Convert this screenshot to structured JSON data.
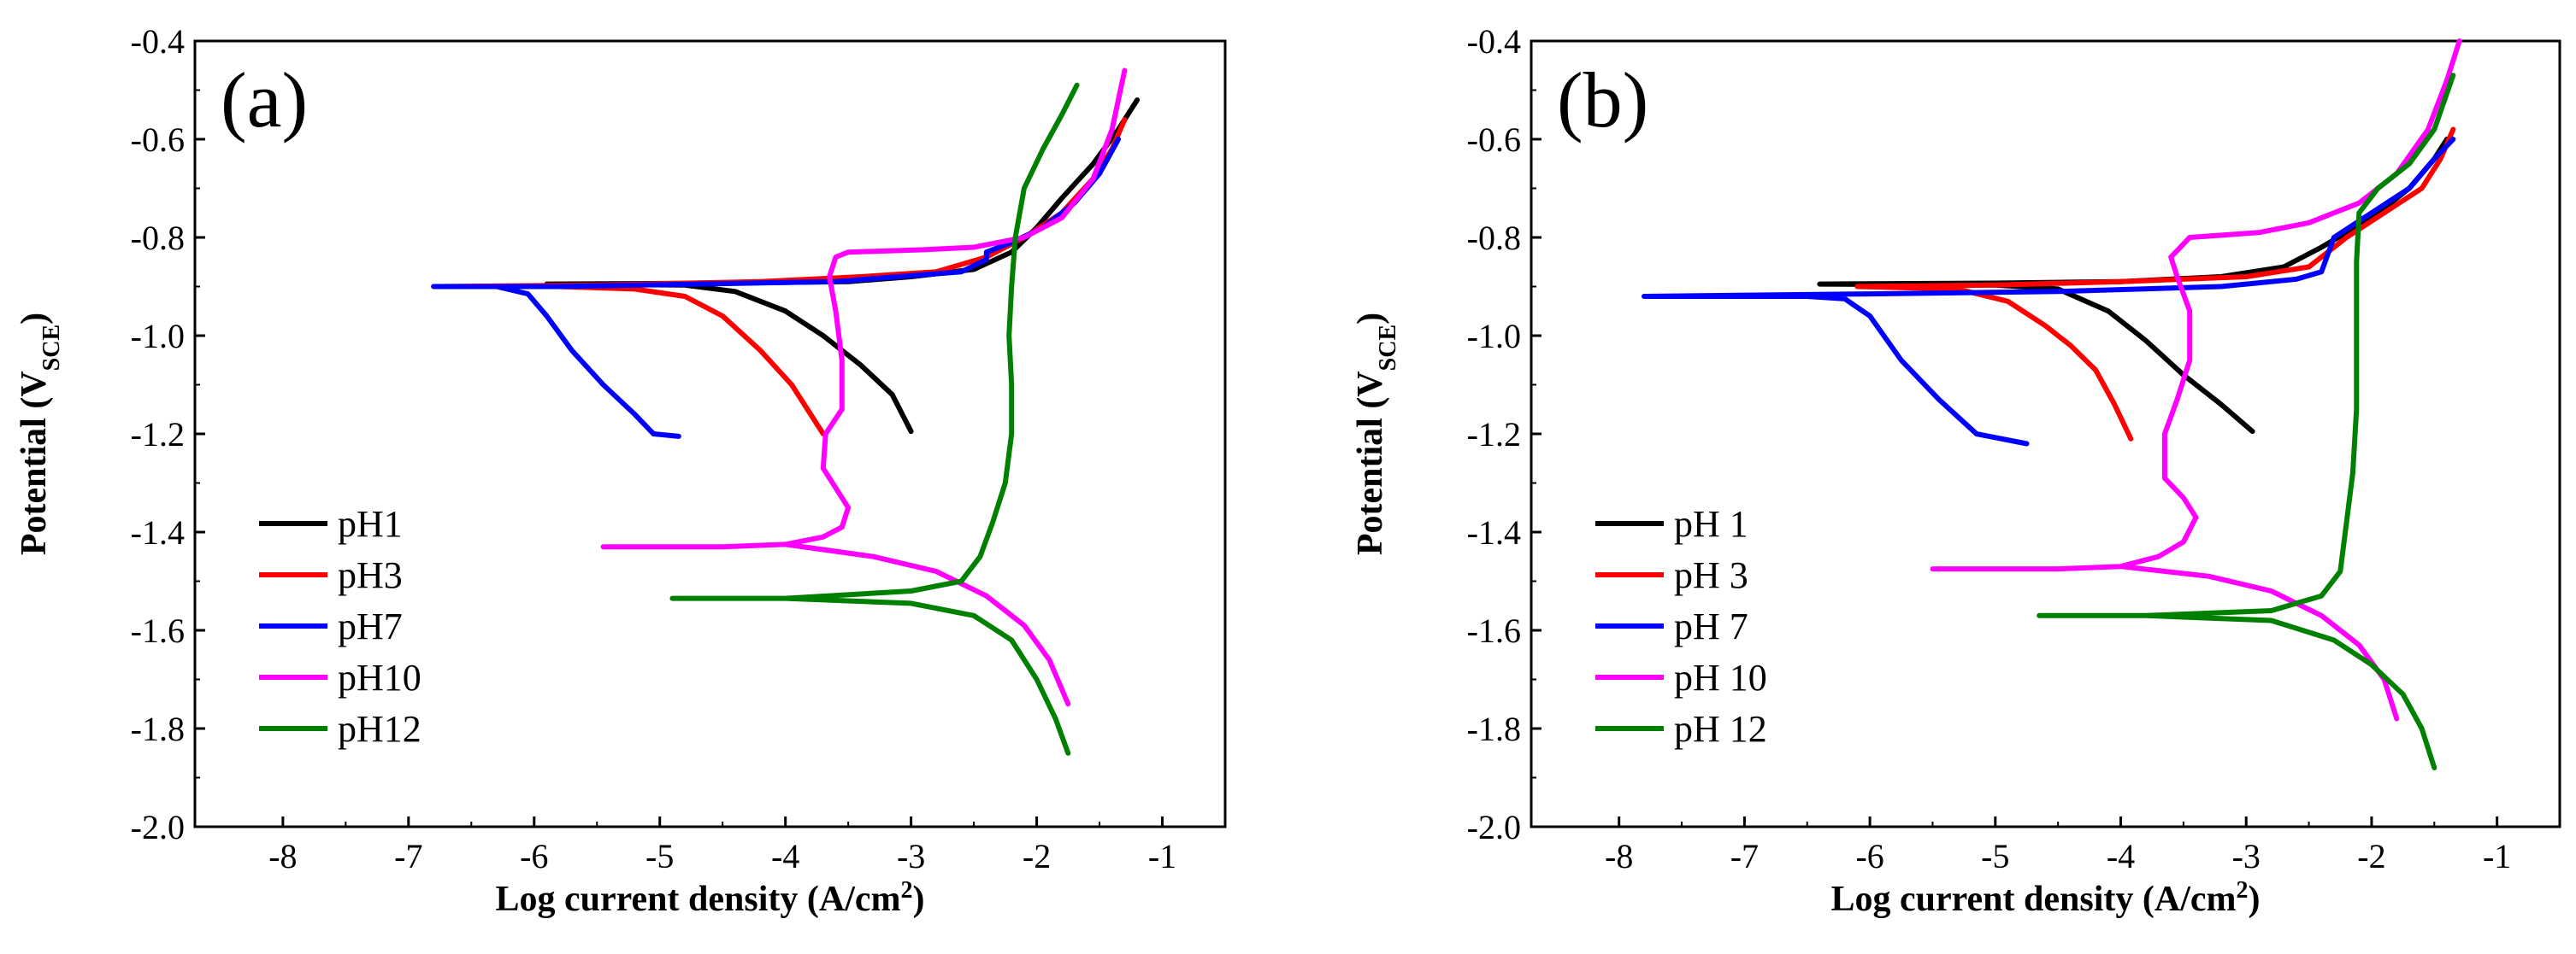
{
  "chart_data": [
    {
      "panel_label": "(a)",
      "type": "line",
      "xlabel": "Log current density (A/cm",
      "xlabel_sup": "2",
      "xlabel_end": ")",
      "ylabel": "Potential (V",
      "ylabel_sub": "SCE",
      "ylabel_end": ")",
      "xlim": [
        -8.7,
        -0.5
      ],
      "ylim": [
        -2.0,
        -0.4
      ],
      "xticks": [
        -8,
        -7,
        -6,
        -5,
        -4,
        -3,
        -2,
        -1
      ],
      "yticks": [
        -2.0,
        -1.8,
        -1.6,
        -1.4,
        -1.2,
        -1.0,
        -0.8,
        -0.6,
        -0.4
      ],
      "legend_position": "bottom-left",
      "series": [
        {
          "name": "pH1",
          "color": "#000000",
          "points": [
            [
              -5.9,
              -0.895
            ],
            [
              -4.8,
              -0.897
            ],
            [
              -4.4,
              -0.91
            ],
            [
              -4.0,
              -0.95
            ],
            [
              -3.7,
              -1.0
            ],
            [
              -3.4,
              -1.06
            ],
            [
              -3.15,
              -1.12
            ],
            [
              -3.0,
              -1.195
            ],
            null,
            [
              -5.9,
              -0.895
            ],
            [
              -4.5,
              -0.893
            ],
            [
              -3.5,
              -0.89
            ],
            [
              -3.0,
              -0.88
            ],
            [
              -2.5,
              -0.865
            ],
            [
              -2.2,
              -0.83
            ],
            [
              -2.0,
              -0.78
            ],
            [
              -1.8,
              -0.72
            ],
            [
              -1.55,
              -0.65
            ],
            [
              -1.35,
              -0.58
            ],
            [
              -1.2,
              -0.52
            ]
          ]
        },
        {
          "name": "pH3",
          "color": "#ff0000",
          "points": [
            [
              -6.8,
              -0.9
            ],
            [
              -5.8,
              -0.9
            ],
            [
              -5.2,
              -0.905
            ],
            [
              -4.8,
              -0.92
            ],
            [
              -4.5,
              -0.96
            ],
            [
              -4.2,
              -1.03
            ],
            [
              -3.95,
              -1.1
            ],
            [
              -3.8,
              -1.16
            ],
            [
              -3.7,
              -1.2
            ],
            null,
            [
              -6.8,
              -0.9
            ],
            [
              -5.5,
              -0.897
            ],
            [
              -4.2,
              -0.89
            ],
            [
              -3.4,
              -0.88
            ],
            [
              -2.8,
              -0.87
            ],
            [
              -2.4,
              -0.84
            ],
            [
              -2.1,
              -0.8
            ],
            [
              -1.8,
              -0.75
            ],
            [
              -1.55,
              -0.68
            ],
            [
              -1.4,
              -0.62
            ],
            [
              -1.3,
              -0.56
            ]
          ]
        },
        {
          "name": "pH7",
          "color": "#0000ff",
          "points": [
            [
              -6.8,
              -0.9
            ],
            [
              -6.3,
              -0.9
            ],
            [
              -6.05,
              -0.915
            ],
            [
              -5.9,
              -0.96
            ],
            [
              -5.7,
              -1.03
            ],
            [
              -5.45,
              -1.1
            ],
            [
              -5.2,
              -1.16
            ],
            [
              -5.05,
              -1.2
            ],
            [
              -4.85,
              -1.205
            ],
            null,
            [
              -6.8,
              -0.9
            ],
            [
              -5.8,
              -0.9
            ],
            [
              -4.7,
              -0.895
            ],
            [
              -3.6,
              -0.89
            ],
            [
              -2.6,
              -0.87
            ],
            [
              -2.4,
              -0.845
            ],
            [
              -2.4,
              -0.83
            ],
            [
              -2.2,
              -0.81
            ],
            [
              -1.95,
              -0.78
            ],
            [
              -1.7,
              -0.73
            ],
            [
              -1.5,
              -0.67
            ],
            [
              -1.35,
              -0.6
            ]
          ]
        },
        {
          "name": "pH10",
          "color": "#ff00ff",
          "points": [
            [
              -5.45,
              -1.43
            ],
            [
              -4.5,
              -1.43
            ],
            [
              -4.0,
              -1.425
            ],
            [
              -3.7,
              -1.41
            ],
            [
              -3.55,
              -1.39
            ],
            [
              -3.5,
              -1.35
            ],
            [
              -3.6,
              -1.31
            ],
            [
              -3.7,
              -1.27
            ],
            [
              -3.68,
              -1.2
            ],
            [
              -3.55,
              -1.15
            ],
            [
              -3.55,
              -1.05
            ],
            [
              -3.6,
              -0.95
            ],
            [
              -3.65,
              -0.88
            ],
            [
              -3.6,
              -0.84
            ],
            [
              -3.5,
              -0.83
            ],
            [
              -2.9,
              -0.825
            ],
            [
              -2.5,
              -0.82
            ],
            [
              -2.1,
              -0.8
            ],
            [
              -1.8,
              -0.76
            ],
            [
              -1.55,
              -0.68
            ],
            [
              -1.4,
              -0.58
            ],
            [
              -1.3,
              -0.46
            ],
            null,
            [
              -4.0,
              -1.425
            ],
            [
              -3.3,
              -1.45
            ],
            [
              -2.8,
              -1.48
            ],
            [
              -2.4,
              -1.53
            ],
            [
              -2.1,
              -1.59
            ],
            [
              -1.9,
              -1.66
            ],
            [
              -1.75,
              -1.75
            ]
          ]
        },
        {
          "name": "pH12",
          "color": "#008000",
          "points": [
            [
              -4.9,
              -1.535
            ],
            [
              -4.0,
              -1.535
            ],
            [
              -3.0,
              -1.52
            ],
            [
              -2.6,
              -1.5
            ],
            [
              -2.45,
              -1.45
            ],
            [
              -2.35,
              -1.38
            ],
            [
              -2.25,
              -1.3
            ],
            [
              -2.2,
              -1.2
            ],
            [
              -2.2,
              -1.1
            ],
            [
              -2.22,
              -1.0
            ],
            [
              -2.2,
              -0.9
            ],
            [
              -2.17,
              -0.8
            ],
            [
              -2.1,
              -0.7
            ],
            [
              -1.95,
              -0.62
            ],
            [
              -1.8,
              -0.55
            ],
            [
              -1.68,
              -0.49
            ],
            null,
            [
              -4.0,
              -1.535
            ],
            [
              -3.0,
              -1.545
            ],
            [
              -2.5,
              -1.57
            ],
            [
              -2.2,
              -1.62
            ],
            [
              -2.0,
              -1.7
            ],
            [
              -1.85,
              -1.78
            ],
            [
              -1.75,
              -1.85
            ]
          ]
        }
      ]
    },
    {
      "panel_label": "(b)",
      "type": "line",
      "xlabel": "Log current density (A/cm",
      "xlabel_sup": "2",
      "xlabel_end": ")",
      "ylabel": "Potential (V",
      "ylabel_sub": "SCE",
      "ylabel_end": ")",
      "xlim": [
        -8.7,
        -0.5
      ],
      "ylim": [
        -2.0,
        -0.4
      ],
      "xticks": [
        -8,
        -7,
        -6,
        -5,
        -4,
        -3,
        -2,
        -1
      ],
      "yticks": [
        -2.0,
        -1.8,
        -1.6,
        -1.4,
        -1.2,
        -1.0,
        -0.8,
        -0.6,
        -0.4
      ],
      "legend_position": "bottom-left",
      "series": [
        {
          "name": "pH 1",
          "color": "#000000",
          "points": [
            [
              -6.4,
              -0.895
            ],
            [
              -5.0,
              -0.897
            ],
            [
              -4.5,
              -0.905
            ],
            [
              -4.1,
              -0.95
            ],
            [
              -3.8,
              -1.01
            ],
            [
              -3.5,
              -1.08
            ],
            [
              -3.2,
              -1.14
            ],
            [
              -2.95,
              -1.195
            ],
            null,
            [
              -6.4,
              -0.895
            ],
            [
              -5.0,
              -0.893
            ],
            [
              -4.0,
              -0.89
            ],
            [
              -3.2,
              -0.88
            ],
            [
              -2.7,
              -0.86
            ],
            [
              -2.4,
              -0.82
            ],
            [
              -2.0,
              -0.76
            ],
            [
              -1.7,
              -0.7
            ],
            [
              -1.5,
              -0.64
            ],
            [
              -1.4,
              -0.6
            ]
          ]
        },
        {
          "name": "pH 3",
          "color": "#ff0000",
          "points": [
            [
              -6.1,
              -0.9
            ],
            [
              -5.3,
              -0.905
            ],
            [
              -4.9,
              -0.93
            ],
            [
              -4.6,
              -0.98
            ],
            [
              -4.4,
              -1.02
            ],
            [
              -4.2,
              -1.07
            ],
            [
              -4.05,
              -1.14
            ],
            [
              -3.92,
              -1.21
            ],
            null,
            [
              -6.1,
              -0.9
            ],
            [
              -5.0,
              -0.897
            ],
            [
              -4.0,
              -0.89
            ],
            [
              -3.0,
              -0.88
            ],
            [
              -2.5,
              -0.86
            ],
            [
              -2.2,
              -0.8
            ],
            [
              -1.9,
              -0.75
            ],
            [
              -1.6,
              -0.7
            ],
            [
              -1.45,
              -0.64
            ],
            [
              -1.35,
              -0.58
            ]
          ]
        },
        {
          "name": "pH 7",
          "color": "#0000ff",
          "points": [
            [
              -7.8,
              -0.92
            ],
            [
              -6.5,
              -0.92
            ],
            [
              -6.2,
              -0.925
            ],
            [
              -6.0,
              -0.96
            ],
            [
              -5.75,
              -1.05
            ],
            [
              -5.45,
              -1.13
            ],
            [
              -5.15,
              -1.2
            ],
            [
              -4.75,
              -1.22
            ],
            null,
            [
              -7.8,
              -0.92
            ],
            [
              -6.0,
              -0.915
            ],
            [
              -4.5,
              -0.91
            ],
            [
              -3.2,
              -0.9
            ],
            [
              -2.6,
              -0.885
            ],
            [
              -2.4,
              -0.87
            ],
            [
              -2.3,
              -0.8
            ],
            [
              -2.0,
              -0.75
            ],
            [
              -1.7,
              -0.7
            ],
            [
              -1.5,
              -0.64
            ],
            [
              -1.35,
              -0.6
            ]
          ]
        },
        {
          "name": "pH 10",
          "color": "#ff00ff",
          "points": [
            [
              -5.5,
              -1.475
            ],
            [
              -4.5,
              -1.475
            ],
            [
              -4.0,
              -1.47
            ],
            [
              -3.7,
              -1.45
            ],
            [
              -3.5,
              -1.42
            ],
            [
              -3.4,
              -1.37
            ],
            [
              -3.5,
              -1.33
            ],
            [
              -3.65,
              -1.29
            ],
            [
              -3.65,
              -1.2
            ],
            [
              -3.55,
              -1.13
            ],
            [
              -3.45,
              -1.05
            ],
            [
              -3.45,
              -0.95
            ],
            [
              -3.55,
              -0.88
            ],
            [
              -3.6,
              -0.84
            ],
            [
              -3.45,
              -0.8
            ],
            [
              -2.9,
              -0.79
            ],
            [
              -2.5,
              -0.77
            ],
            [
              -2.1,
              -0.73
            ],
            [
              -1.8,
              -0.67
            ],
            [
              -1.55,
              -0.58
            ],
            [
              -1.4,
              -0.48
            ],
            [
              -1.3,
              -0.4
            ],
            null,
            [
              -4.0,
              -1.47
            ],
            [
              -3.3,
              -1.49
            ],
            [
              -2.8,
              -1.52
            ],
            [
              -2.4,
              -1.57
            ],
            [
              -2.1,
              -1.63
            ],
            [
              -1.9,
              -1.7
            ],
            [
              -1.8,
              -1.78
            ]
          ]
        },
        {
          "name": "pH 12",
          "color": "#008000",
          "points": [
            [
              -4.65,
              -1.57
            ],
            [
              -3.8,
              -1.57
            ],
            [
              -2.8,
              -1.56
            ],
            [
              -2.4,
              -1.53
            ],
            [
              -2.25,
              -1.48
            ],
            [
              -2.2,
              -1.38
            ],
            [
              -2.15,
              -1.28
            ],
            [
              -2.12,
              -1.15
            ],
            [
              -2.12,
              -1.0
            ],
            [
              -2.12,
              -0.85
            ],
            [
              -2.1,
              -0.75
            ],
            [
              -1.95,
              -0.7
            ],
            [
              -1.7,
              -0.65
            ],
            [
              -1.5,
              -0.58
            ],
            [
              -1.35,
              -0.47
            ],
            null,
            [
              -3.8,
              -1.57
            ],
            [
              -2.8,
              -1.58
            ],
            [
              -2.3,
              -1.62
            ],
            [
              -2.0,
              -1.67
            ],
            [
              -1.75,
              -1.73
            ],
            [
              -1.6,
              -1.8
            ],
            [
              -1.5,
              -1.88
            ]
          ]
        }
      ]
    }
  ]
}
